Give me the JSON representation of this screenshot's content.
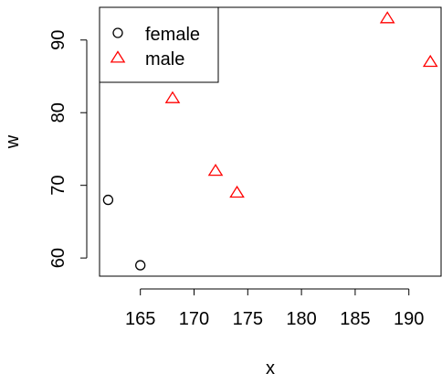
{
  "chart_data": {
    "type": "scatter",
    "xlabel": "x",
    "ylabel": "w",
    "xlim": [
      161.2,
      193.0
    ],
    "ylim": [
      57.5,
      94.5
    ],
    "xticks": [
      165,
      170,
      175,
      180,
      185,
      190
    ],
    "yticks": [
      60,
      70,
      80,
      90
    ],
    "legend_position": "top-left",
    "series": [
      {
        "name": "female",
        "marker": "circle",
        "color": "#000000",
        "points": [
          {
            "x": 162,
            "y": 68
          },
          {
            "x": 165,
            "y": 59
          }
        ]
      },
      {
        "name": "male",
        "marker": "triangle",
        "color": "#ff0000",
        "points": [
          {
            "x": 168,
            "y": 82
          },
          {
            "x": 172,
            "y": 72
          },
          {
            "x": 174,
            "y": 69
          },
          {
            "x": 188,
            "y": 93
          },
          {
            "x": 192,
            "y": 87
          }
        ]
      }
    ]
  }
}
